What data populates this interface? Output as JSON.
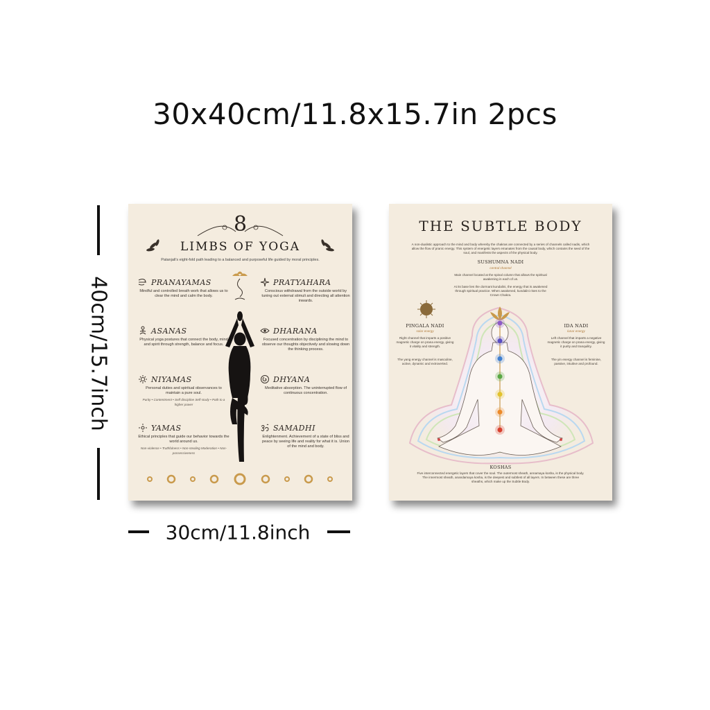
{
  "headline": "30x40cm/11.8x15.7in 2pcs",
  "dimensions": {
    "height_label": "40cm/15.7inch",
    "width_label": "30cm/11.8inch"
  },
  "poster_left": {
    "number": "8",
    "title": "LIMBS OF YOGA",
    "subtitle": "Patanjali's eight-fold path leading to a balanced and purposeful life guided by moral principles.",
    "limbs": [
      {
        "name": "PRANAYAMAS",
        "icon": "breath-icon",
        "description": "Mindful and controlled breath work that allows us to clear the mind and calm the body.",
        "extra": ""
      },
      {
        "name": "PRATYAHARA",
        "icon": "sparkle-icon",
        "description": "Conscious withdrawal from the outside world by tuning out external stimuli and directing all attention inwards.",
        "extra": ""
      },
      {
        "name": "ASANAS",
        "icon": "meditation-figure-icon",
        "description": "Physical yoga postures that connect the body, mind and spirit through strength, balance and focus.",
        "extra": ""
      },
      {
        "name": "DHARANA",
        "icon": "eye-icon",
        "description": "Focused concentration by disciplining the mind to observe our thoughts objectively and slowing down the thinking process.",
        "extra": ""
      },
      {
        "name": "NIYAMAS",
        "icon": "sun-icon",
        "description": "Personal duties and spiritual observances to maintain a pure soul.",
        "extra": "Purity • Contentment • Self discipline Self-study • Path to a higher power"
      },
      {
        "name": "DHYANA",
        "icon": "spiral-icon",
        "description": "Meditative absorption. The uninterrupted flow of continuous concentration.",
        "extra": ""
      },
      {
        "name": "YAMAS",
        "icon": "lotus-sun-icon",
        "description": "Ethical principles that guide our behavior towards the world around us.",
        "extra": "Non-violence • Truthfulness • Non-stealing Moderation • Non-possessiveness"
      },
      {
        "name": "SAMADHI",
        "icon": "om-icon",
        "description": "Enlightenment. Achievement of a state of bliss and peace by seeing life and reality for what it is. Union of the mind and body.",
        "extra": ""
      }
    ]
  },
  "poster_right": {
    "title": "THE SUBTLE BODY",
    "intro": "A non-dualistic approach to the mind and body whereby the chakras are connected by a series of channels called nadis, which allow the flow of pranic energy. This system of energetic layers emanates from the causal body, which contains the seed of the soul, and manifests the aspects of the physical body.",
    "sushumna": {
      "name": "SUSHUMNA NADI",
      "tag": "central channel",
      "text1": "Main channel located at the spinal column that allows the spiritual awakening in each of us.",
      "text2": "At its base lies the dormant kundalini, the energy that is awakened through spiritual practice. When awakened, kundalini rises to the Crown Chakra."
    },
    "pingala": {
      "name": "PINGALA NADI",
      "tag": "solar energy",
      "text1": "Right channel that imparts a positive magnetic charge on prana energy, giving it vitality and strength.",
      "text2": "The yang energy channel is masculine, active, dynamic and extroverted."
    },
    "ida": {
      "name": "IDA NADI",
      "tag": "lunar energy",
      "text1": "Left channel that imparts a negative magnetic charge on prana energy, giving it purity and tranquility.",
      "text2": "The yin energy channel is feminine, passive, intuitive and profound."
    },
    "koshas": {
      "name": "KOSHAS",
      "text": "Five interconnected energetic layers that cover the soul. The outermost sheath, annamaya kosha, is the physical body. The innermost sheath, anandamaya kosha, is the deepest and subtlest of all layers. In between these are three sheaths, which make up the Subtle Body."
    },
    "chakra_colors": [
      "#8e5cc7",
      "#5b4fc4",
      "#3f7fd0",
      "#5aa845",
      "#e2c22d",
      "#ec8a2a",
      "#d8402f"
    ]
  }
}
